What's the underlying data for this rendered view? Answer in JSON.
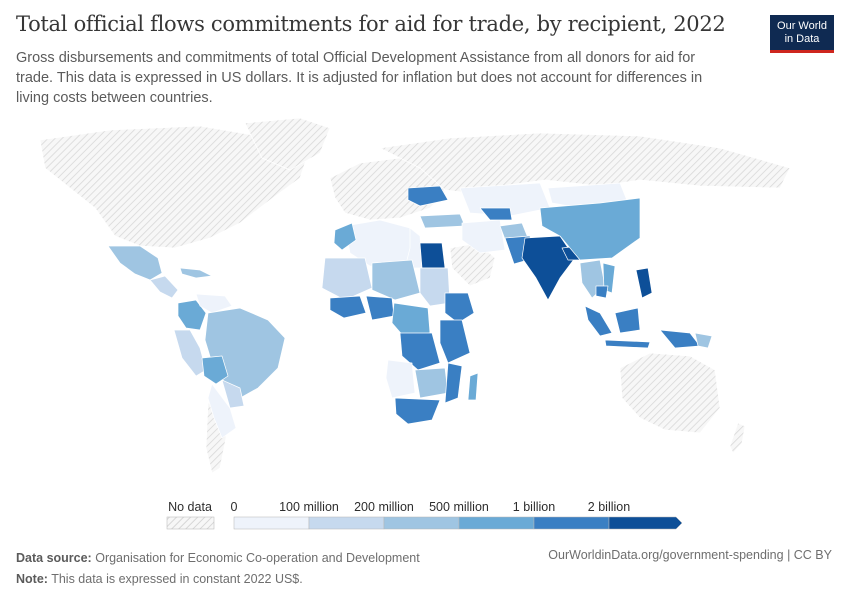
{
  "header": {
    "title": "Total official flows commitments for aid for trade, by recipient, 2022",
    "subtitle": "Gross disbursements and commitments of total Official Development Assistance from all donors for aid for trade. This data is expressed in US dollars. It is adjusted for inflation but does not account for differences in living costs between countries."
  },
  "logo": {
    "line1": "Our World",
    "line2": "in Data"
  },
  "legend": {
    "no_data_label": "No data",
    "ticks": [
      "0",
      "100 million",
      "200 million",
      "500 million",
      "1 billion",
      "2 billion"
    ],
    "colors": [
      "#eef3fb",
      "#c6d9ee",
      "#9fc5e2",
      "#6aaad6",
      "#3a7fc3",
      "#0d4f98"
    ],
    "no_data_color": "#e8e8e8"
  },
  "footer": {
    "source_label": "Data source:",
    "source_text": "Organisation for Economic Co-operation and Development",
    "note_label": "Note:",
    "note_text": "This data is expressed in constant 2022 US$.",
    "url": "OurWorldinData.org/government-spending | CC BY"
  },
  "map_colors": {
    "very_low": "#eef3fb",
    "low": "#c6d9ee",
    "mid": "#9fc5e2",
    "high": "#6aaad6",
    "higher": "#3a7fc3",
    "highest": "#0d4f98",
    "no_data": "#e8e8e8"
  }
}
